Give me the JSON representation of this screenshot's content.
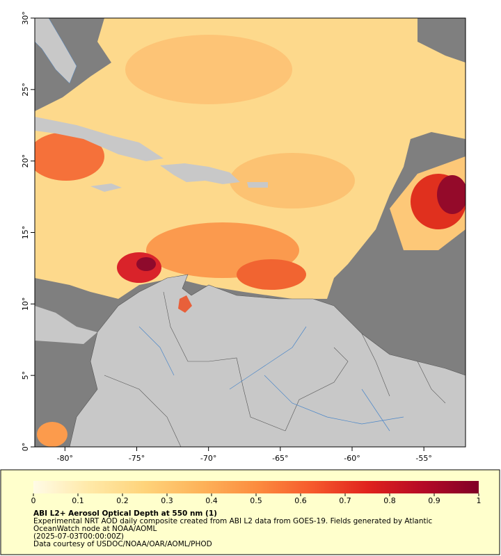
{
  "map": {
    "lonlim": [
      -82.1,
      -52.1
    ],
    "latlim": [
      0,
      30
    ],
    "lon_ticks": [
      {
        "value": -80,
        "label": "-80°"
      },
      {
        "value": -75,
        "label": "-75°"
      },
      {
        "value": -70,
        "label": "-70°"
      },
      {
        "value": -65,
        "label": "-65°"
      },
      {
        "value": -60,
        "label": "-60°"
      },
      {
        "value": -55,
        "label": "-55°"
      }
    ],
    "lat_ticks": [
      {
        "value": 0,
        "label": "0°"
      },
      {
        "value": 5,
        "label": "5°"
      },
      {
        "value": 10,
        "label": "10°"
      },
      {
        "value": 15,
        "label": "15°"
      },
      {
        "value": 20,
        "label": "20°"
      },
      {
        "value": 25,
        "label": "25°"
      },
      {
        "value": 30,
        "label": "30°"
      }
    ]
  },
  "colorbar": {
    "lim": [
      0,
      1
    ],
    "ticks": [
      0,
      0.1,
      0.2,
      0.3,
      0.4,
      0.5,
      0.6,
      0.7,
      0.8,
      0.9,
      1
    ],
    "colors": [
      "#fffbe6",
      "#ffe9a8",
      "#fed37a",
      "#fdb35a",
      "#fc8d3f",
      "#f65a2c",
      "#e0231d",
      "#b50a26",
      "#800026"
    ]
  },
  "caption": {
    "title": "ABI L2+ Aerosol Optical Depth at 550 nm (1)",
    "lines": [
      "Experimental NRT AOD daily composite created from ABI L2 data from GOES-19. Fields generated by Atlantic",
      "OceanWatch node at NOAA/AOML",
      "(2025-07-03T00:00:00Z)",
      "Data courtesy of USDOC/NOAA/OAR/AOML/PHOD"
    ]
  }
}
